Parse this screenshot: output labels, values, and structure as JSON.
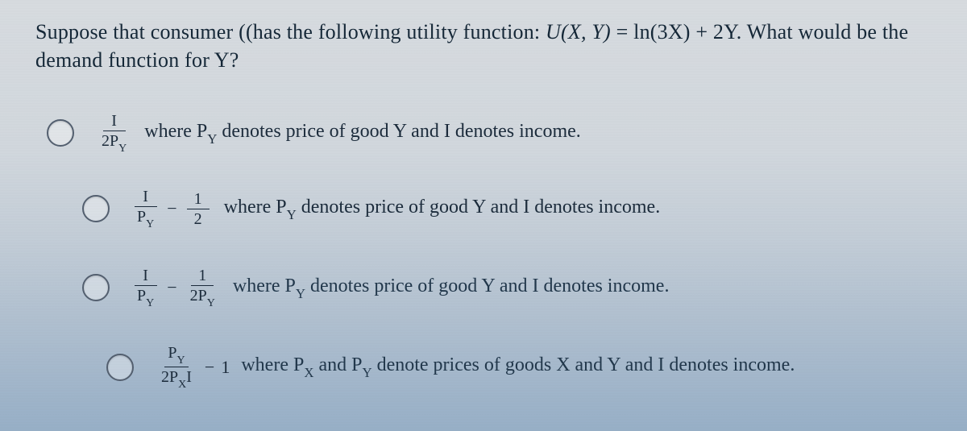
{
  "question": {
    "prefix": "Suppose that consumer ((has the following utility function: ",
    "utility_lhs": "U(X, Y)",
    "equals": " = ",
    "utility_rhs": "ln(3X) + 2Y",
    "suffix": ". What would be the demand function for Y?"
  },
  "options": [
    {
      "formula": {
        "type": "single_frac",
        "num": "I",
        "den_html": "2P<sub>Y</sub>"
      },
      "desc": "where P",
      "desc_sub": "Y",
      "desc_tail": " denotes price of good Y and I denotes income."
    },
    {
      "formula": {
        "type": "diff",
        "num1": "I",
        "den1_html": "P<sub>Y</sub>",
        "num2": "1",
        "den2_html": "2"
      },
      "desc": "where P",
      "desc_sub": "Y",
      "desc_tail": " denotes price of good Y and I denotes income."
    },
    {
      "formula": {
        "type": "diff",
        "num1": "I",
        "den1_html": "P<sub>Y</sub>",
        "num2": "1",
        "den2_html": "2P<sub>Y</sub>"
      },
      "desc": "where P",
      "desc_sub": "Y",
      "desc_tail": " denotes price of good Y and I denotes income."
    },
    {
      "formula": {
        "type": "diff_tail",
        "num1_html": "P<sub>Y</sub>",
        "den1_html": "2P<sub>X</sub>I",
        "tail": "1"
      },
      "desc": "where P",
      "desc_sub": "X",
      "desc_mid": " and P",
      "desc_sub2": "Y",
      "desc_tail": " denote prices of goods X and Y and I denotes income."
    }
  ],
  "colors": {
    "text": "#1a2a3a",
    "border": "#546070",
    "bg_top": "#d8dce0",
    "bg_bottom": "#98b0c8"
  },
  "fontsize": {
    "question": 26,
    "option": 24,
    "fraction": 20
  }
}
